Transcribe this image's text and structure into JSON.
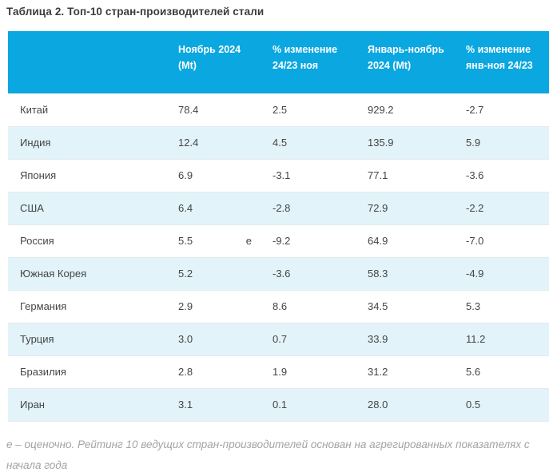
{
  "page": {
    "title": "Таблица 2. Топ-10 стран-производителей стали",
    "footnote": "е – оценочно. Рейтинг 10 ведущих стран-производителей основан на агрегированных показателях с начала года"
  },
  "colors": {
    "header_bg": "#0aa7e0",
    "stripe_bg": "#e2f3fa",
    "header_text": "#ffffff",
    "title_text": "#3c3c3c",
    "body_text": "#454545",
    "footnote_text": "#a3a3a3",
    "row_border": "#e3eaef"
  },
  "table": {
    "columns": [
      "",
      "Ноябрь 2024 (Mt)",
      "% изменение 24/23 ноя",
      "Январь-ноябрь 2024 (Mt)",
      "% изменение янв-ноя 24/23"
    ],
    "rows": [
      {
        "country": "Китай",
        "nov_2024_mt": "78.4",
        "marker": "",
        "pct_change_nov": "2.5",
        "jan_nov_2024_mt": "929.2",
        "pct_change_jan_nov": "-2.7"
      },
      {
        "country": "Индия",
        "nov_2024_mt": "12.4",
        "marker": "",
        "pct_change_nov": "4.5",
        "jan_nov_2024_mt": "135.9",
        "pct_change_jan_nov": "5.9"
      },
      {
        "country": "Япония",
        "nov_2024_mt": "6.9",
        "marker": "",
        "pct_change_nov": "-3.1",
        "jan_nov_2024_mt": "77.1",
        "pct_change_jan_nov": "-3.6"
      },
      {
        "country": "США",
        "nov_2024_mt": "6.4",
        "marker": "",
        "pct_change_nov": "-2.8",
        "jan_nov_2024_mt": "72.9",
        "pct_change_jan_nov": "-2.2"
      },
      {
        "country": "Россия",
        "nov_2024_mt": "5.5",
        "marker": "е",
        "pct_change_nov": "-9.2",
        "jan_nov_2024_mt": "64.9",
        "pct_change_jan_nov": "-7.0"
      },
      {
        "country": "Южная Корея",
        "nov_2024_mt": "5.2",
        "marker": "",
        "pct_change_nov": "-3.6",
        "jan_nov_2024_mt": "58.3",
        "pct_change_jan_nov": "-4.9"
      },
      {
        "country": "Германия",
        "nov_2024_mt": "2.9",
        "marker": "",
        "pct_change_nov": "8.6",
        "jan_nov_2024_mt": "34.5",
        "pct_change_jan_nov": "5.3"
      },
      {
        "country": "Турция",
        "nov_2024_mt": "3.0",
        "marker": "",
        "pct_change_nov": "0.7",
        "jan_nov_2024_mt": "33.9",
        "pct_change_jan_nov": "11.2"
      },
      {
        "country": "Бразилия",
        "nov_2024_mt": "2.8",
        "marker": "",
        "pct_change_nov": "1.9",
        "jan_nov_2024_mt": "31.2",
        "pct_change_jan_nov": "5.6"
      },
      {
        "country": "Иран",
        "nov_2024_mt": "3.1",
        "marker": "",
        "pct_change_nov": "0.1",
        "jan_nov_2024_mt": "28.0",
        "pct_change_jan_nov": "0.5"
      }
    ]
  }
}
